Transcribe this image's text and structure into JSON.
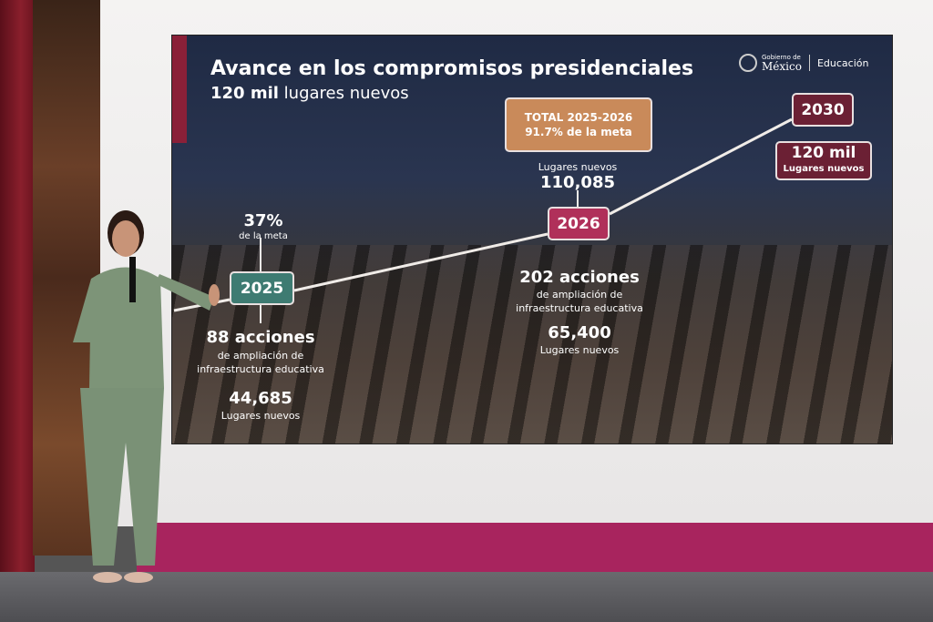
{
  "slide": {
    "title": "Avance en los compromisos presidenciales",
    "subtitle_bold": "120 mil",
    "subtitle_rest": " lugares nuevos",
    "logo": {
      "gov_small": "Gobierno de",
      "gov_big": "México",
      "dept": "Educación"
    },
    "total": {
      "line1": "TOTAL 2025-2026",
      "line2": "91.7% de la meta",
      "label": "Lugares nuevos",
      "value": "110,085"
    },
    "y2025": {
      "year": "2025",
      "pct": "37%",
      "pct_label": "de la meta",
      "actions": "88 acciones",
      "desc1": "de ampliación de",
      "desc2": "infraestructura educativa",
      "places": "44,685",
      "places_label": "Lugares nuevos"
    },
    "y2026": {
      "year": "2026",
      "actions": "202 acciones",
      "desc1": "de ampliación de",
      "desc2": "infraestructura educativa",
      "places": "65,400",
      "places_label": "Lugares nuevos"
    },
    "y2030": {
      "year": "2030",
      "goal": "120 mil",
      "goal_label": "Lugares nuevos"
    },
    "colors": {
      "teal": "#3e7b72",
      "pink": "#b0305a",
      "maroon": "#6b2034",
      "orange": "#c98a5a"
    }
  }
}
